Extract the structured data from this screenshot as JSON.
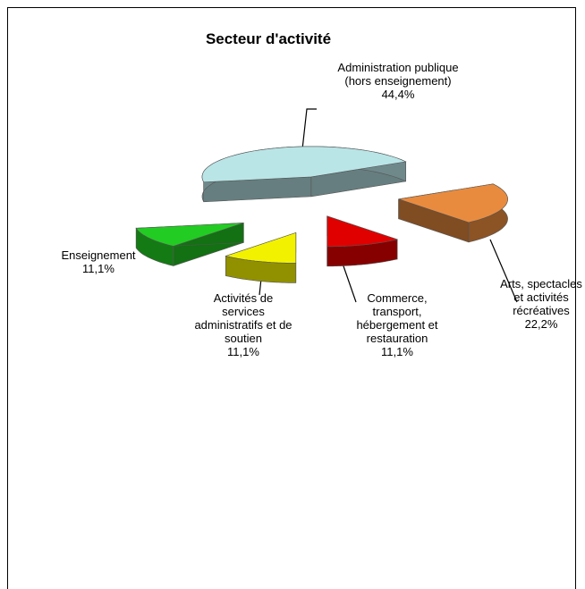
{
  "chart_data": {
    "type": "pie",
    "title": "Secteur d'activité",
    "categories": [
      "Administration publique (hors enseignement)",
      "Arts, spectacles et activités récréatives",
      "Commerce, transport, hébergement et restauration",
      "Activités de services administratifs et de soutien",
      "Enseignement"
    ],
    "values": [
      44.4,
      22.2,
      11.1,
      11.1,
      11.1
    ],
    "value_labels": [
      "44,4%",
      "22,2%",
      "11,1%",
      "11,1%",
      "11,1%"
    ],
    "colors": [
      "#b9e5e7",
      "#e98b3e",
      "#e00000",
      "#f2f200",
      "#22cc22"
    ]
  }
}
